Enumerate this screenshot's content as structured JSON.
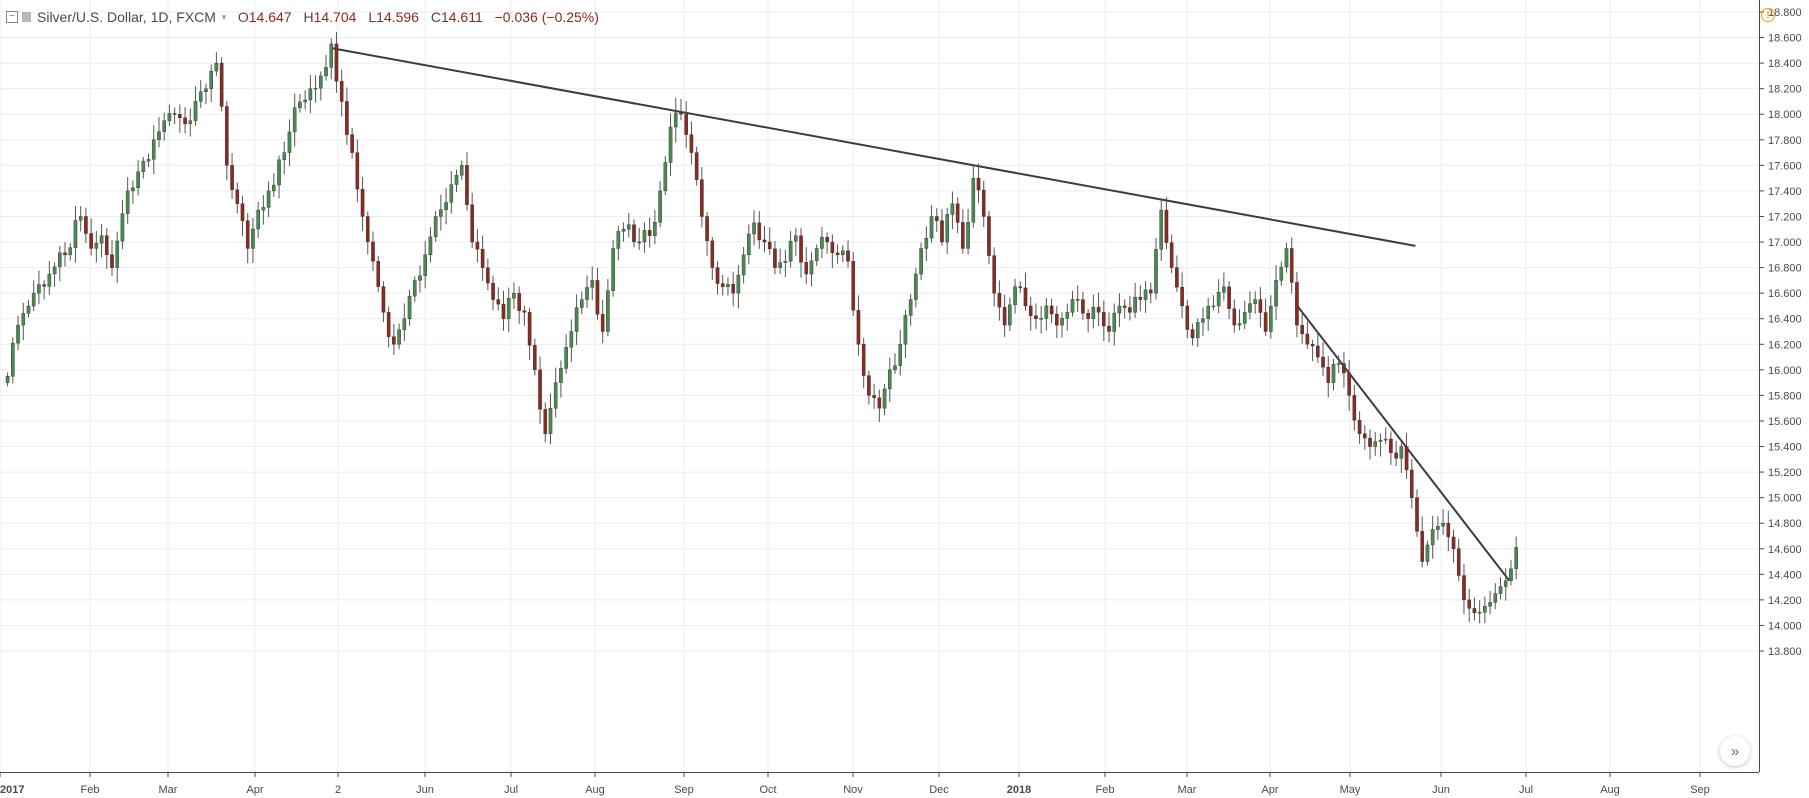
{
  "legend": {
    "symbol": "Silver/U.S. Dollar, 1D, FXCM",
    "open_label": "O",
    "open": "14.647",
    "high_label": "H",
    "high": "14.704",
    "low_label": "L",
    "low": "14.596",
    "close_label": "C",
    "close": "14.611",
    "change": "−0.036 (−0.25%)"
  },
  "icons": {
    "collapse": "collapse-icon",
    "flag": "flag-icon",
    "caret": "caret-down-icon",
    "alert": "alert-icon",
    "scroll": "scroll-right-icon"
  },
  "colors": {
    "up": "#4a8a4e",
    "down": "#8b2a1e",
    "trendline": "#3c3c3c",
    "grid": "#ececec",
    "axis_text": "#4a4a4a"
  },
  "chart_data": {
    "type": "candlestick",
    "title": "Silver/U.S. Dollar, 1D, FXCM",
    "x_tick_labels": [
      "2017",
      "Feb",
      "Mar",
      "Apr",
      "2",
      "Jun",
      "Jul",
      "Aug",
      "Sep",
      "Oct",
      "Nov",
      "Dec",
      "2018",
      "Feb",
      "Mar",
      "Apr",
      "May",
      "Jun",
      "Jul",
      "Aug",
      "Sep"
    ],
    "y_tick_labels": [
      "18.800",
      "18.600",
      "18.400",
      "18.200",
      "18.000",
      "17.800",
      "17.600",
      "17.400",
      "17.200",
      "17.000",
      "16.800",
      "16.600",
      "16.400",
      "16.200",
      "16.000",
      "15.800",
      "15.600",
      "15.400",
      "15.200",
      "15.000",
      "14.800",
      "14.600",
      "14.400",
      "14.200",
      "14.000",
      "13.800"
    ],
    "ylim": [
      13.7,
      18.85
    ],
    "grid": true,
    "series_anchor_close": [
      [
        0,
        15.95
      ],
      [
        2,
        16.35
      ],
      [
        5,
        16.6
      ],
      [
        8,
        16.75
      ],
      [
        11,
        16.9
      ],
      [
        14,
        17.2
      ],
      [
        16,
        16.95
      ],
      [
        18,
        17.05
      ],
      [
        20,
        16.8
      ],
      [
        23,
        17.4
      ],
      [
        25,
        17.55
      ],
      [
        28,
        17.8
      ],
      [
        30,
        17.95
      ],
      [
        32,
        18.0
      ],
      [
        35,
        17.95
      ],
      [
        38,
        18.2
      ],
      [
        40,
        18.4
      ],
      [
        42,
        17.6
      ],
      [
        44,
        17.3
      ],
      [
        46,
        16.95
      ],
      [
        48,
        17.25
      ],
      [
        50,
        17.4
      ],
      [
        53,
        17.7
      ],
      [
        55,
        18.05
      ],
      [
        58,
        18.2
      ],
      [
        60,
        18.3
      ],
      [
        62,
        18.55
      ],
      [
        64,
        18.1
      ],
      [
        66,
        17.7
      ],
      [
        68,
        17.2
      ],
      [
        70,
        16.85
      ],
      [
        72,
        16.45
      ],
      [
        74,
        16.2
      ],
      [
        76,
        16.4
      ],
      [
        78,
        16.7
      ],
      [
        80,
        16.9
      ],
      [
        82,
        17.2
      ],
      [
        85,
        17.45
      ],
      [
        87,
        17.6
      ],
      [
        89,
        17.0
      ],
      [
        91,
        16.8
      ],
      [
        93,
        16.55
      ],
      [
        95,
        16.4
      ],
      [
        97,
        16.6
      ],
      [
        99,
        16.45
      ],
      [
        101,
        16.0
      ],
      [
        103,
        15.5
      ],
      [
        105,
        15.9
      ],
      [
        108,
        16.3
      ],
      [
        110,
        16.55
      ],
      [
        112,
        16.7
      ],
      [
        114,
        16.3
      ],
      [
        116,
        16.95
      ],
      [
        118,
        17.1
      ],
      [
        121,
        17.0
      ],
      [
        123,
        17.05
      ],
      [
        125,
        17.4
      ],
      [
        127,
        17.9
      ],
      [
        129,
        18.0
      ],
      [
        131,
        17.7
      ],
      [
        133,
        17.2
      ],
      [
        135,
        16.8
      ],
      [
        137,
        16.65
      ],
      [
        139,
        16.6
      ],
      [
        141,
        16.9
      ],
      [
        143,
        17.15
      ],
      [
        145,
        17.0
      ],
      [
        147,
        16.8
      ],
      [
        149,
        16.85
      ],
      [
        151,
        17.05
      ],
      [
        153,
        16.75
      ],
      [
        155,
        16.95
      ],
      [
        157,
        17.0
      ],
      [
        159,
        16.9
      ],
      [
        161,
        16.85
      ],
      [
        163,
        16.2
      ],
      [
        165,
        15.8
      ],
      [
        167,
        15.7
      ],
      [
        169,
        16.0
      ],
      [
        171,
        16.2
      ],
      [
        173,
        16.55
      ],
      [
        175,
        16.95
      ],
      [
        177,
        17.2
      ],
      [
        179,
        17.0
      ],
      [
        181,
        17.3
      ],
      [
        183,
        16.95
      ],
      [
        185,
        17.5
      ],
      [
        187,
        17.2
      ],
      [
        189,
        16.6
      ],
      [
        191,
        16.35
      ],
      [
        193,
        16.65
      ],
      [
        195,
        16.5
      ],
      [
        197,
        16.4
      ],
      [
        199,
        16.5
      ],
      [
        201,
        16.35
      ],
      [
        203,
        16.45
      ],
      [
        205,
        16.55
      ],
      [
        207,
        16.4
      ],
      [
        209,
        16.45
      ],
      [
        211,
        16.3
      ],
      [
        213,
        16.5
      ],
      [
        215,
        16.45
      ],
      [
        217,
        16.55
      ],
      [
        219,
        16.6
      ],
      [
        221,
        17.25
      ],
      [
        223,
        16.8
      ],
      [
        225,
        16.5
      ],
      [
        227,
        16.25
      ],
      [
        229,
        16.4
      ],
      [
        231,
        16.5
      ],
      [
        233,
        16.65
      ],
      [
        235,
        16.35
      ],
      [
        237,
        16.45
      ],
      [
        239,
        16.55
      ],
      [
        241,
        16.3
      ],
      [
        243,
        16.7
      ],
      [
        245,
        16.95
      ],
      [
        247,
        16.35
      ],
      [
        249,
        16.2
      ],
      [
        251,
        16.1
      ],
      [
        253,
        15.9
      ],
      [
        255,
        16.05
      ],
      [
        257,
        15.8
      ],
      [
        259,
        15.5
      ],
      [
        261,
        15.4
      ],
      [
        263,
        15.45
      ],
      [
        265,
        15.35
      ],
      [
        267,
        15.4
      ],
      [
        269,
        15.0
      ],
      [
        271,
        14.5
      ],
      [
        273,
        14.75
      ],
      [
        275,
        14.8
      ],
      [
        277,
        14.6
      ],
      [
        279,
        14.2
      ],
      [
        281,
        14.1
      ],
      [
        283,
        14.15
      ],
      [
        285,
        14.25
      ],
      [
        287,
        14.35
      ],
      [
        289,
        14.611
      ]
    ],
    "trendlines": [
      {
        "from": [
          62,
          18.52
        ],
        "to": [
          270,
          16.97
        ]
      },
      {
        "from": [
          247,
          16.52
        ],
        "to": [
          288,
          14.35
        ]
      }
    ]
  }
}
